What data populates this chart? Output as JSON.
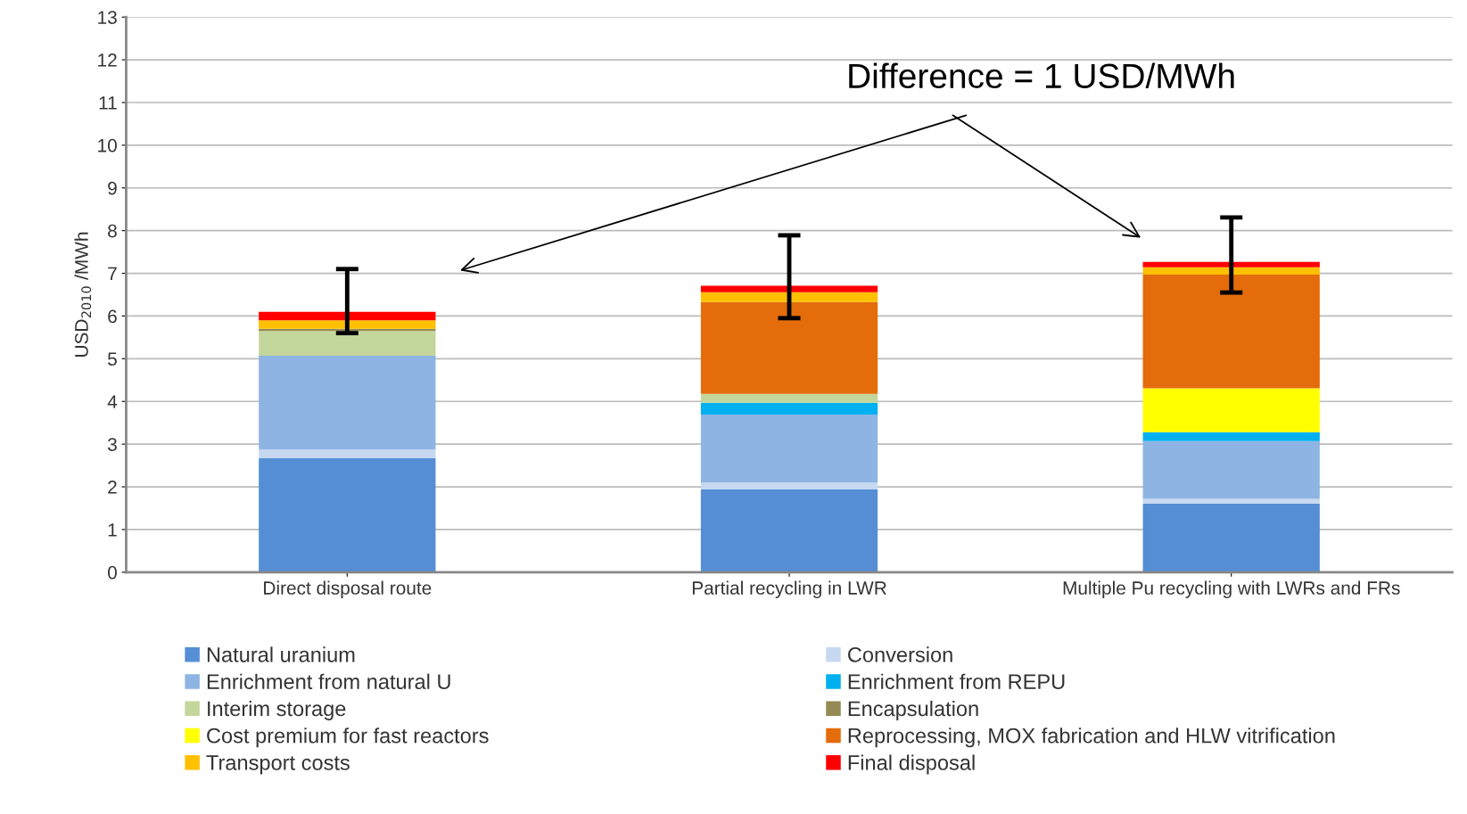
{
  "chart_data": {
    "type": "bar",
    "stacked": true,
    "ylabel": "USD$_{2010}$ /MWh",
    "categories": [
      "Direct disposal route",
      "Partial recycling in LWR",
      "Multiple Pu recycling with LWRs and FRs"
    ],
    "series": [
      {
        "name": "Natural uranium",
        "color": "#558ed5",
        "values": [
          2.67,
          1.94,
          1.61
        ]
      },
      {
        "name": "Conversion",
        "color": "#c6d9f1",
        "values": [
          0.2,
          0.16,
          0.11
        ]
      },
      {
        "name": "Enrichment from natural U",
        "color": "#8eb4e3",
        "values": [
          2.2,
          1.59,
          1.35
        ]
      },
      {
        "name": "Enrichment from REPU",
        "color": "#00b0f0",
        "values": [
          0,
          0.28,
          0.21
        ]
      },
      {
        "name": "Interim storage",
        "color": "#c3d69b",
        "values": [
          0.58,
          0.21,
          0
        ]
      },
      {
        "name": "Encapsulation",
        "color": "#948a54",
        "values": [
          0.05,
          0,
          0
        ]
      },
      {
        "name": "Cost premium for fast reactors",
        "color": "#ffff00",
        "values": [
          0,
          0,
          1.03
        ]
      },
      {
        "name": "Reprocessing, MOX fabrication and HLW vitrification",
        "color": "#e46c0a",
        "values": [
          0,
          2.15,
          2.66
        ]
      },
      {
        "name": "Transport costs",
        "color": "#ffc000",
        "values": [
          0.2,
          0.23,
          0.17
        ]
      },
      {
        "name": "Final disposal",
        "color": "#ff0000",
        "values": [
          0.2,
          0.15,
          0.13
        ],
        "errors": [
          [
            5.6,
            7.1
          ],
          [
            5.95,
            7.89
          ],
          [
            6.55,
            8.31
          ]
        ]
      }
    ],
    "ylim": [
      0,
      13
    ],
    "yticks": [
      0,
      1,
      2,
      3,
      4,
      5,
      6,
      7,
      8,
      9,
      10,
      11,
      12,
      13
    ],
    "grid": "y",
    "legend": "bottom",
    "annotations": [
      "Difference = 1 USD/MWh"
    ]
  }
}
